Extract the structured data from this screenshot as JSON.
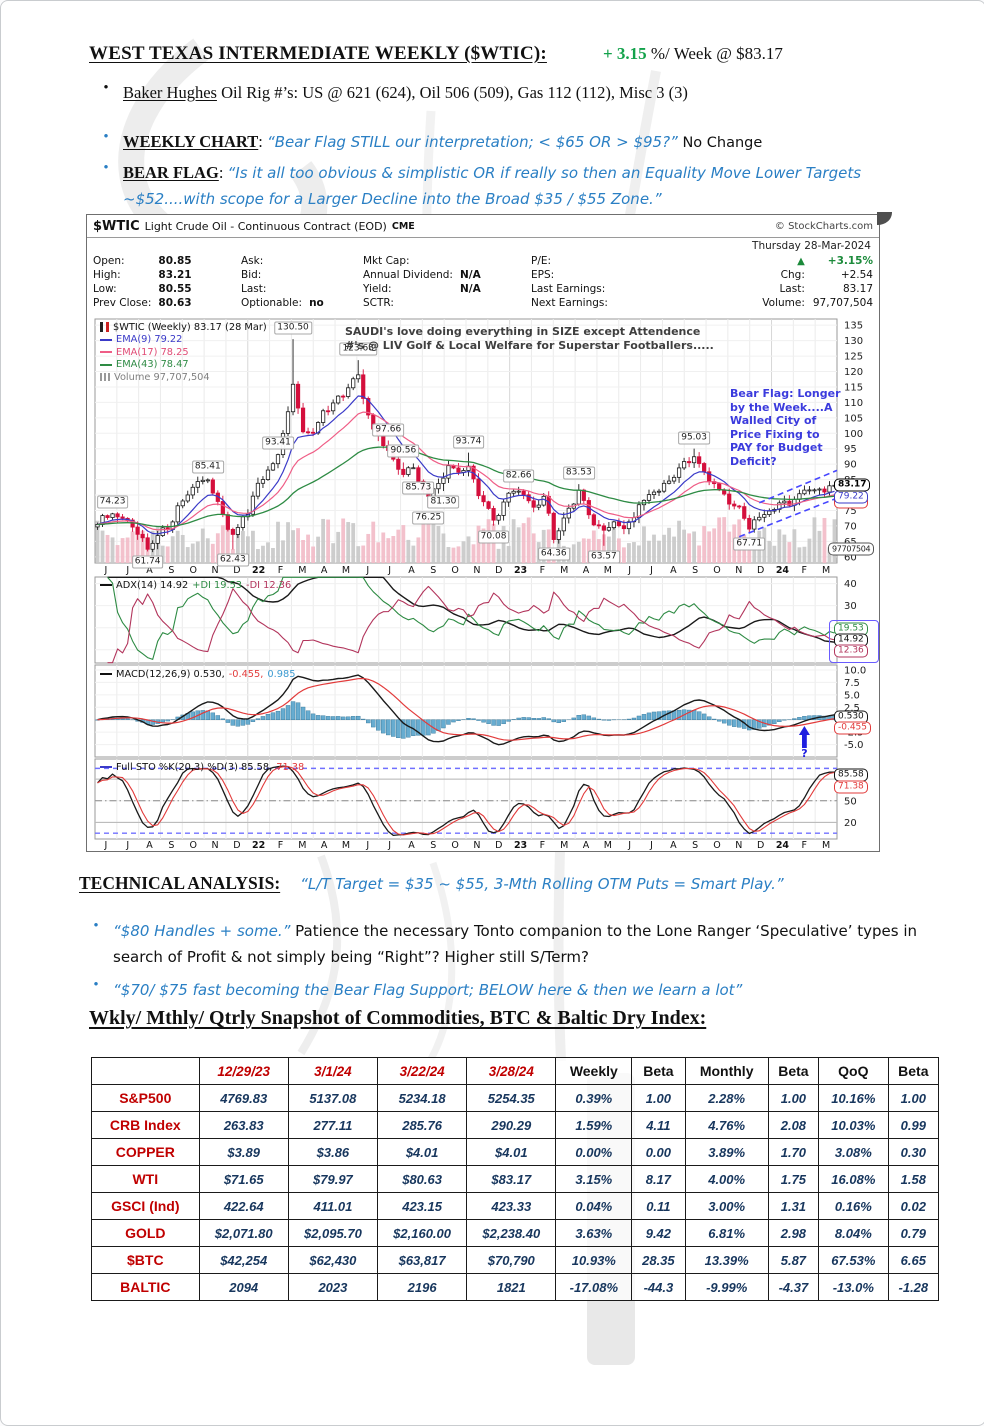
{
  "colors": {
    "quote_blue": "#2a7fc4",
    "change_green": "#13a24b",
    "table_red": "#c00000",
    "table_navy": "#17365d",
    "candle_down": "#d40f3c",
    "ema9": "#3a3ac8",
    "ema17": "#ef5d86",
    "ema43": "#2e8b44",
    "bear_flag_blue": "#4646ff"
  },
  "page": {
    "title": "WEST TEXAS INTERMEDIATE WEEKLY ($WTIC):",
    "change_green": "+ 3.15",
    "change_rest": " %/ Week @ $83.17",
    "bullet_baker_label": "Baker Hughes",
    "bullet_baker_text": " Oil Rig #’s: US @ 621 (624), Oil 506 (509), Gas 112 (112), Misc 3 (3)",
    "bullet_weekly_label": "WEEKLY CHART",
    "bullet_weekly_colon": ": ",
    "bullet_weekly_quote": "“Bear Flag STILL our interpretation; < $65 OR > $95?”",
    "bullet_weekly_suffix": "  No Change",
    "bullet_bearflag_label": "BEAR FLAG",
    "bullet_bearflag_colon": ": ",
    "bullet_bearflag_quote": "“Is it all too obvious & simplistic OR if really so then an Equality Move Lower Targets ~$52....with scope for a Larger Decline into the Broad $35 / $55 Zone.”",
    "ta_header": "TECHNICAL ANALYSIS:",
    "ta_quote": "“L/T Target = $35 ~ $55, 3-Mth Rolling OTM Puts = Smart Play.”",
    "ta_b1_blue": "“$80 Handles + some.”",
    "ta_b1_black": "  Patience the necessary Tonto companion to the Lone Ranger ‘Speculative’ types in search of Profit & not simply being “Right”? Higher still S/Term?",
    "ta_b2_blue": "“$70/ $75 fast becoming the Bear Flag Support; BELOW here & then we learn a lot”",
    "section_header": "Wkly/ Mthly/ Qtrly Snapshot of Commodities, BTC & Baltic Dry Index:"
  },
  "chart": {
    "symbol": "$WTIC",
    "name": "Light Crude Oil - Continuous Contract (EOD)",
    "exchange": "CME",
    "credit": "© StockCharts.com",
    "date": "Thursday 28-Mar-2024",
    "info": {
      "open_label": "Open:",
      "open": "80.85",
      "high_label": "High:",
      "high": "83.21",
      "low_label": "Low:",
      "low": "80.55",
      "prev_label": "Prev Close:",
      "prev": "80.63",
      "ask_label": "Ask:",
      "bid_label": "Bid:",
      "last_label": "Last:",
      "opt_label": "Optionable:",
      "opt": "no",
      "mktcap_label": "Mkt Cap:",
      "div_label": "Annual Dividend:",
      "div": "N/A",
      "yield_label": "Yield:",
      "yield_v": "N/A",
      "sctr_label": "SCTR:",
      "pe_label": "P/E:",
      "eps_label": "EPS:",
      "lastearn_label": "Last Earnings:",
      "nextearn_label": "Next Earnings:",
      "tri": "▲",
      "pct": "+3.15%",
      "chg_label": "Chg:",
      "chg": "+2.54",
      "last2_label": "Last:",
      "last2": "83.17",
      "vol_label": "Volume:",
      "vol": "97,707,504"
    }
  },
  "chart_data": {
    "type": "candlestick",
    "symbol": "$WTIC",
    "timeframe": "weekly",
    "title": "$WTIC (Weekly) 83.17 (28 Mar)",
    "weeks": 148,
    "x_months": [
      "J",
      "J",
      "A",
      "S",
      "O",
      "N",
      "D",
      "22",
      "F",
      "M",
      "A",
      "M",
      "J",
      "J",
      "A",
      "S",
      "O",
      "N",
      "D",
      "23",
      "F",
      "M",
      "A",
      "M",
      "J",
      "J",
      "A",
      "S",
      "O",
      "N",
      "D",
      "24",
      "F",
      "M"
    ],
    "price_ylim": [
      58,
      137
    ],
    "price_ticks": [
      135,
      130,
      125,
      120,
      115,
      110,
      105,
      100,
      95,
      90,
      85,
      80,
      75,
      70,
      65,
      60
    ],
    "last_close": 83.17,
    "close_anchors": [
      [
        0,
        70.5
      ],
      [
        3,
        74
      ],
      [
        6,
        71.5
      ],
      [
        10,
        62.3
      ],
      [
        14,
        70
      ],
      [
        19,
        83.5
      ],
      [
        22,
        84.5
      ],
      [
        24,
        78
      ],
      [
        27,
        66.2
      ],
      [
        30,
        75
      ],
      [
        33,
        86
      ],
      [
        36,
        91.5
      ],
      [
        39,
        115
      ],
      [
        41,
        102
      ],
      [
        43,
        99
      ],
      [
        45,
        107
      ],
      [
        47,
        110
      ],
      [
        49,
        113
      ],
      [
        52,
        118
      ],
      [
        55,
        101
      ],
      [
        58,
        94
      ],
      [
        61,
        87
      ],
      [
        63,
        88.5
      ],
      [
        66,
        78.5
      ],
      [
        68,
        85
      ],
      [
        70,
        88
      ],
      [
        74,
        89
      ],
      [
        76,
        80
      ],
      [
        79,
        72
      ],
      [
        82,
        80
      ],
      [
        84,
        81.5
      ],
      [
        87,
        77
      ],
      [
        89,
        79.5
      ],
      [
        91,
        67
      ],
      [
        94,
        75.7
      ],
      [
        96,
        81
      ],
      [
        99,
        71
      ],
      [
        101,
        68
      ],
      [
        103,
        72
      ],
      [
        105,
        69
      ],
      [
        108,
        76
      ],
      [
        111,
        81
      ],
      [
        114,
        84
      ],
      [
        117,
        90
      ],
      [
        119,
        92
      ],
      [
        122,
        85.5
      ],
      [
        125,
        80
      ],
      [
        128,
        75.5
      ],
      [
        130,
        70
      ],
      [
        133,
        73.5
      ],
      [
        136,
        77.5
      ],
      [
        139,
        78.5
      ],
      [
        141,
        81
      ],
      [
        144,
        81.5
      ],
      [
        147,
        83.17
      ]
    ],
    "price_labels": [
      {
        "week": 3,
        "value": 74.23,
        "side": "high"
      },
      {
        "week": 10,
        "value": 61.74,
        "side": "low"
      },
      {
        "week": 22,
        "value": 85.41,
        "side": "high"
      },
      {
        "week": 27,
        "value": 62.43,
        "side": "low"
      },
      {
        "week": 36,
        "value": 93.41,
        "side": "high"
      },
      {
        "week": 39,
        "value": 130.5,
        "side": "high"
      },
      {
        "week": 52,
        "value": 123.68,
        "side": "high"
      },
      {
        "week": 58,
        "value": 97.66,
        "side": "high"
      },
      {
        "week": 61,
        "value": 90.56,
        "side": "high"
      },
      {
        "week": 64,
        "value": 85.73,
        "side": "low"
      },
      {
        "week": 66,
        "value": 76.25,
        "side": "low"
      },
      {
        "week": 69,
        "value": 81.3,
        "side": "low"
      },
      {
        "week": 74,
        "value": 93.74,
        "side": "high"
      },
      {
        "week": 79,
        "value": 70.08,
        "side": "low"
      },
      {
        "week": 84,
        "value": 82.66,
        "side": "high"
      },
      {
        "week": 91,
        "value": 64.36,
        "side": "low"
      },
      {
        "week": 96,
        "value": 83.53,
        "side": "high"
      },
      {
        "week": 101,
        "value": 63.57,
        "side": "low"
      },
      {
        "week": 119,
        "value": 95.03,
        "side": "high"
      },
      {
        "week": 130,
        "value": 67.71,
        "side": "low"
      }
    ],
    "bear_flag_lines": [
      [
        128,
        66.5,
        147.5,
        79.0
      ],
      [
        132,
        77.5,
        147.5,
        88.0
      ]
    ],
    "legends": {
      "price": [
        {
          "icon": "candles",
          "parts": [
            {
              "t": "$WTIC (Weekly) 83.17 (28 Mar)",
              "c": "#111111"
            }
          ]
        },
        {
          "icon": "line",
          "color": "#3a3ac8",
          "parts": [
            {
              "t": "EMA(9) 79.22",
              "c": "#3a3ac8"
            }
          ]
        },
        {
          "icon": "line",
          "color": "#ef5d86",
          "parts": [
            {
              "t": "EMA(17) 78.25",
              "c": "#e04a74"
            }
          ]
        },
        {
          "icon": "line",
          "color": "#2e8b44",
          "parts": [
            {
              "t": "EMA(43) 78.47",
              "c": "#2e8b44"
            }
          ]
        },
        {
          "icon": "bars",
          "parts": [
            {
              "t": "Volume 97,707,504",
              "c": "#808080"
            }
          ]
        }
      ],
      "adx": [
        {
          "icon": "line",
          "color": "#111111",
          "parts": [
            {
              "t": "ADX(14) 14.92 ",
              "c": "#111111"
            },
            {
              "t": "+DI 19.53 ",
              "c": "#2e8b44"
            },
            {
              "t": "-DI 12.36",
              "c": "#b2355c"
            }
          ]
        }
      ],
      "macd": [
        {
          "icon": "line",
          "color": "#111111",
          "parts": [
            {
              "t": "MACD(12,26,9) 0.530, ",
              "c": "#111111"
            },
            {
              "t": "-0.455, ",
              "c": "#e23b3b"
            },
            {
              "t": "0.985",
              "c": "#3d9bd1"
            }
          ]
        }
      ],
      "sto": [
        {
          "icon": "line",
          "color": "#3a3ac8",
          "parts": [
            {
              "t": "Full STO %K(20,3) %D(3) 85.58, ",
              "c": "#111111"
            },
            {
              "t": "71.38",
              "c": "#e23b3b"
            }
          ]
        }
      ]
    },
    "indicators": {
      "adx": {
        "ticks": [
          40,
          30,
          20,
          10
        ],
        "last": {
          "adx": 14.92,
          "plus_di": 19.53,
          "minus_di": 12.36
        }
      },
      "macd": {
        "ticks": [
          10.0,
          7.5,
          5.0,
          2.5,
          -2.5,
          -5.0
        ],
        "last": {
          "macd": 0.53,
          "signal": -0.455,
          "hist": 0.985
        }
      },
      "sto": {
        "ticks": [
          80,
          50,
          20
        ],
        "last": {
          "k": 85.58,
          "d": 71.38
        }
      }
    },
    "right_boxes": {
      "price": [
        {
          "label": "83.17",
          "at": 83.17,
          "style": "rb-main"
        },
        {
          "label": "79.22",
          "at": 79.22,
          "style": "rb-blue"
        },
        {
          "label": "78.25",
          "at": 77.9,
          "style": "rb-red"
        }
      ],
      "volume": {
        "label": "97707504",
        "at": 62.6
      },
      "adx": [
        {
          "label": "19.53",
          "c": "#2e8b44"
        },
        {
          "label": "14.92",
          "c": "#111111"
        },
        {
          "label": "12.36",
          "c": "#b2355c"
        }
      ],
      "macd": [
        {
          "label": "0.530",
          "c": "#111111"
        },
        {
          "label": "-0.455",
          "c": "#e23b3b"
        }
      ],
      "sto": [
        {
          "label": "85.58",
          "c": "#111111"
        },
        {
          "label": "71.38",
          "c": "#e23b3b"
        }
      ]
    },
    "annotations": {
      "saudi": "SAUDI's love doing everything in SIZE except Attendence\n#'s @ LIV Golf & Local Welfare for Superstar Footballers.....",
      "bear_flag": "Bear Flag: Longer\nby the Week....A\nWalled City of\nPrice Fixing to\nPAY for Budget\nDeficit?",
      "macd_question": "?"
    }
  },
  "table": {
    "columns": [
      "",
      "12/29/23",
      "3/1/24",
      "3/22/24",
      "3/28/24",
      "Weekly",
      "Beta",
      "Monthly",
      "Beta",
      "QoQ",
      "Beta"
    ],
    "rows": [
      [
        "S&P500",
        "4769.83",
        "5137.08",
        "5234.18",
        "5254.35",
        "0.39%",
        "1.00",
        "2.28%",
        "1.00",
        "10.16%",
        "1.00"
      ],
      [
        "CRB Index",
        "263.83",
        "277.11",
        "285.76",
        "290.29",
        "1.59%",
        "4.11",
        "4.76%",
        "2.08",
        "10.03%",
        "0.99"
      ],
      [
        "COPPER",
        "$3.89",
        "$3.86",
        "$4.01",
        "$4.01",
        "0.00%",
        "0.00",
        "3.89%",
        "1.70",
        "3.08%",
        "0.30"
      ],
      [
        "WTI",
        "$71.65",
        "$79.97",
        "$80.63",
        "$83.17",
        "3.15%",
        "8.17",
        "4.00%",
        "1.75",
        "16.08%",
        "1.58"
      ],
      [
        "GSCI (Ind)",
        "422.64",
        "411.01",
        "423.15",
        "423.33",
        "0.04%",
        "0.11",
        "3.00%",
        "1.31",
        "0.16%",
        "0.02"
      ],
      [
        "GOLD",
        "$2,071.80",
        "$2,095.70",
        "$2,160.00",
        "$2,238.40",
        "3.63%",
        "9.42",
        "6.81%",
        "2.98",
        "8.04%",
        "0.79"
      ],
      [
        "$BTC",
        "$42,254",
        "$62,430",
        "$63,817",
        "$70,790",
        "10.93%",
        "28.35",
        "13.39%",
        "5.87",
        "67.53%",
        "6.65"
      ],
      [
        "BALTIC",
        "2094",
        "2023",
        "2196",
        "1821",
        "-17.08%",
        "-44.3",
        "-9.99%",
        "-4.37",
        "-13.0%",
        "-1.28"
      ]
    ]
  }
}
